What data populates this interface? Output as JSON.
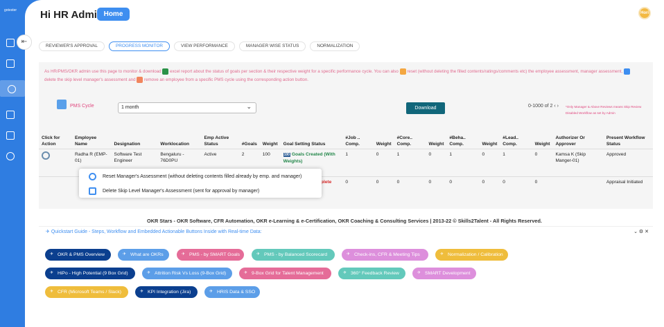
{
  "app": {
    "logo_text": "gotester"
  },
  "header": {
    "title": "Hi HR Admin",
    "home_label": "Home",
    "avatar_text": "Hori"
  },
  "tabs": [
    {
      "label": "REVIEWER'S APPROVAL",
      "active": false
    },
    {
      "label": "PROGRESS MONITOR",
      "active": true
    },
    {
      "label": "VIEW PERFORMANCE",
      "active": false
    },
    {
      "label": "MANAGER WISE STATUS",
      "active": false
    },
    {
      "label": "NORMALIZATION",
      "active": false
    }
  ],
  "info": {
    "part1": "As HR/PMS/OKR admin use this page to monitor & download",
    "part2": "excel report about the status of goals per section & their respective weight for a specific performance cycle. You can also",
    "part3": "reset (without deleting the filled contents/ratings/comments etc) the employee assessment, manager assessment,",
    "part4": "delete the skip level manager's assessment and",
    "part5": "remove an employee from a specific PMS cycle using the corresponding action button."
  },
  "pms": {
    "label": "PMS Cycle",
    "selected": "1 month",
    "download_label": "Download",
    "pagination": "0-1000 of 2 ‹ ›",
    "note": "*Only Manager & Above Reviews means Skip Review Disabled Workflow as set by Admin"
  },
  "table": {
    "headers": [
      "Click for Action",
      "Employee Name",
      "Designation",
      "Worklocation",
      "Emp Active Status",
      "#Goals",
      "Weight",
      "Goal Setting Status",
      "#Job .. Comp.",
      "Weight",
      "#Core.. Comp.",
      "Weight",
      "#Beha.. Comp.",
      "Weight",
      "#Lead.. Comp.",
      "Weight",
      "Authorizer Or Approver",
      "Present Workflow Status"
    ],
    "rows": [
      {
        "name": "Radha R (EMP-01)",
        "designation": "Software Test Engineer",
        "worklocation": "Bengaluru - 76D0PU",
        "status": "Active",
        "goals": "2",
        "weight": "100",
        "goal_status_badge": "100",
        "goal_status": "Goals Created (With Weights)",
        "job": "1",
        "job_w": "0",
        "core": "1",
        "core_w": "0",
        "beha": "1",
        "beha_w": "0",
        "lead": "1",
        "lead_w": "0",
        "approver": "Kamsa K (Skip Manger-01)",
        "workflow": "Approved"
      },
      {
        "name": "",
        "designation": "",
        "worklocation": "",
        "status": "",
        "goals": "",
        "weight": "",
        "goal_status_badge": "",
        "goal_status": "Goal Setting complete",
        "job": "0",
        "job_w": "0",
        "core": "0",
        "core_w": "0",
        "beha": "0",
        "beha_w": "0",
        "lead": "0",
        "lead_w": "0",
        "approver": "",
        "workflow": "Appraisal Initiated"
      }
    ]
  },
  "popup": {
    "items": [
      "Reset Manager's Assessment (without deleting contents filled already by emp. and manager)",
      "Delete Skip Level Manager's Assessment (sent for approval by manager)"
    ]
  },
  "footer": {
    "copyright": "OKR Stars - OKR Software, CFR Automation, OKR e-Learning & e-Certification, OKR Coaching & Consulting Services | 2013-22 © Skills2Talent - All Rights Reserved.",
    "quickstart_title": "Quickstart Guide - Steps, Workflow and Embedded Actionable Buttons Inside with Real-time Data:",
    "quickstart_controls": "⌄ ⚙ ✕"
  },
  "quickstart": [
    {
      "label": "OKR & PMS Overview",
      "color": "#0b3f8f"
    },
    {
      "label": "What are OKRs",
      "color": "#5c9ee8"
    },
    {
      "label": "PMS - by SMART Goals",
      "color": "#e56c98"
    },
    {
      "label": "PMS - by Balanced Scorecard",
      "color": "#63c9bb"
    },
    {
      "label": "Check-ins, CFR & Meeting Tips",
      "color": "#dd8fdc"
    },
    {
      "label": "Normalization / Calibration",
      "color": "#efbd3c"
    },
    {
      "label": "HiPo - High Potential (9 Box Grid)",
      "color": "#0b3f8f"
    },
    {
      "label": "Attrition Risk Vs Loss (9-Box Grid)",
      "color": "#5c9ee8"
    },
    {
      "label": "9-Box Grid for Talent Management",
      "color": "#e56c98"
    },
    {
      "label": "360° Feedback Review",
      "color": "#63c9bb"
    },
    {
      "label": "SMART Development",
      "color": "#dd8fdc"
    },
    {
      "label": "CFR (Microsoft Teams / Slack)",
      "color": "#efbd3c"
    },
    {
      "label": "KPI Integration (Jira)",
      "color": "#0b3f8f"
    },
    {
      "label": "HRIS Data & SSO",
      "color": "#5c9ee8"
    }
  ]
}
